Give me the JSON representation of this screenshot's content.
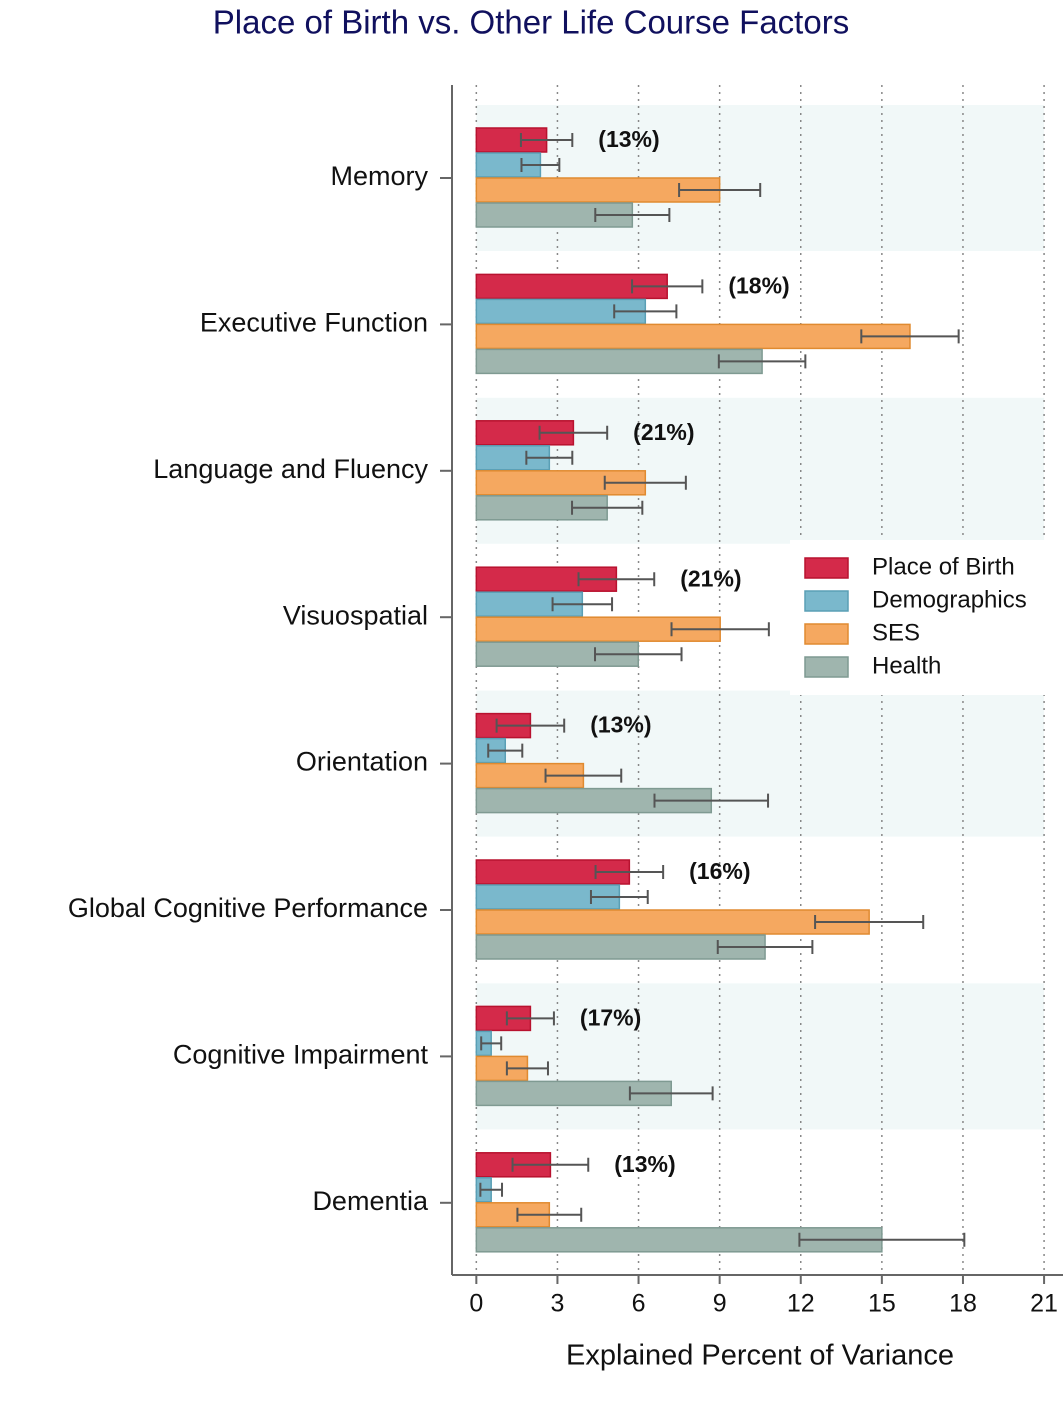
{
  "chart_data": {
    "type": "bar",
    "orientation": "horizontal",
    "title": "Place of Birth vs. Other Life Course Factors",
    "x_label": "Explained Percent of Variance",
    "categories": [
      "Memory",
      "Executive Function",
      "Language and Fluency",
      "Visuospatial",
      "Orientation",
      "Global Cognitive Performance",
      "Cognitive Impairment",
      "Dementia"
    ],
    "annotations": [
      "(13%)",
      "(18%)",
      "(21%)",
      "(21%)",
      "(13%)",
      "(16%)",
      "(17%)",
      "(13%)"
    ],
    "series": [
      {
        "name": "Place of Birth",
        "color": "#d42a4a",
        "values": [
          2.6,
          7.06,
          3.59,
          5.18,
          2.0,
          5.66,
          2.0,
          2.74
        ],
        "errors": [
          0.95,
          1.3,
          1.25,
          1.4,
          1.25,
          1.25,
          0.87,
          1.4
        ]
      },
      {
        "name": "Demographics",
        "color": "#7ab8cc",
        "values": [
          2.37,
          6.25,
          2.7,
          3.92,
          1.07,
          5.29,
          0.55,
          0.55
        ],
        "errors": [
          0.7,
          1.15,
          0.85,
          1.1,
          0.63,
          1.05,
          0.37,
          0.4
        ]
      },
      {
        "name": "SES",
        "color": "#f5a860",
        "values": [
          9.0,
          16.04,
          6.25,
          9.02,
          3.96,
          14.53,
          1.89,
          2.7
        ],
        "errors": [
          1.5,
          1.8,
          1.5,
          1.8,
          1.4,
          2.0,
          0.76,
          1.18
        ]
      },
      {
        "name": "Health",
        "color": "#9fb5ae",
        "values": [
          5.77,
          10.57,
          4.84,
          5.99,
          8.69,
          10.68,
          7.21,
          15.0
        ],
        "errors": [
          1.37,
          1.6,
          1.3,
          1.6,
          2.1,
          1.75,
          1.53,
          3.05
        ]
      }
    ],
    "xlim": [
      -0.9,
      21.7
    ],
    "xticks": [
      0,
      3,
      6,
      9,
      12,
      15,
      18,
      21
    ],
    "grid": true,
    "legend": "right"
  }
}
